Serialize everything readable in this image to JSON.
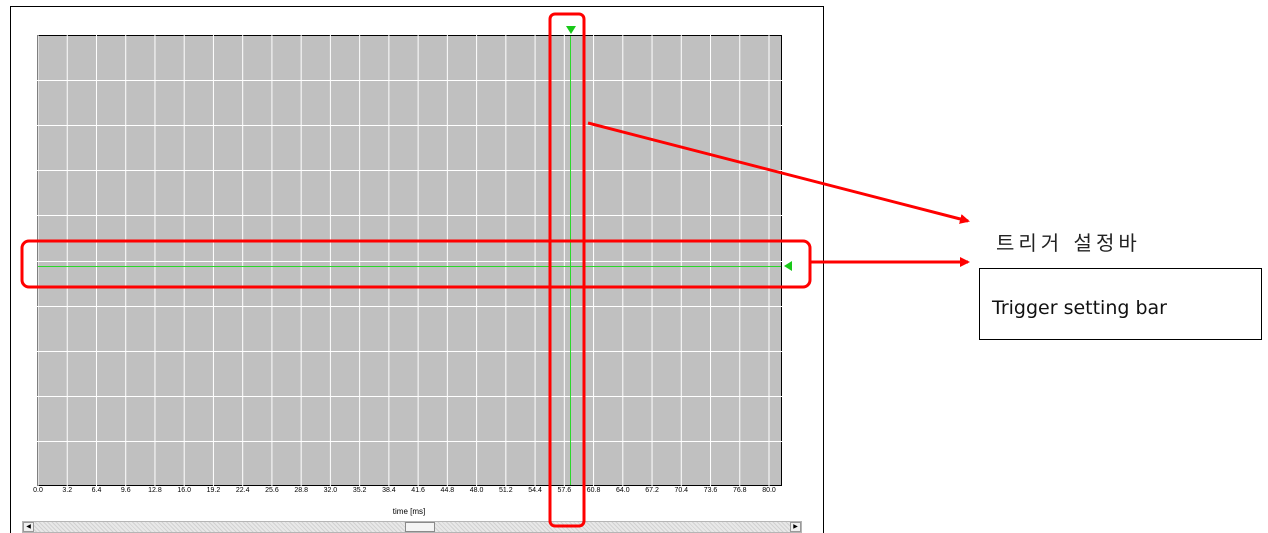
{
  "plot": {
    "x_axis": {
      "label": "time [ms]",
      "ticks": [
        "0.0",
        "3.2",
        "6.4",
        "9.6",
        "12.8",
        "16.0",
        "19.2",
        "22.4",
        "25.6",
        "28.8",
        "32.0",
        "35.2",
        "38.4",
        "41.6",
        "44.8",
        "48.0",
        "51.2",
        "54.4",
        "57.6",
        "60.8",
        "64.0",
        "67.2",
        "70.4",
        "73.6",
        "76.8",
        "80.0"
      ]
    },
    "background_color": "#c0c0c0",
    "grid_color": "#ffffff",
    "trigger_color": "#2bd82b"
  },
  "annotation": {
    "korean_label": "트리거 설정바",
    "english_label": "Trigger setting bar",
    "color": "#ff0000"
  },
  "scrollbar": {
    "left_arrow": "◀",
    "right_arrow": "▶"
  }
}
